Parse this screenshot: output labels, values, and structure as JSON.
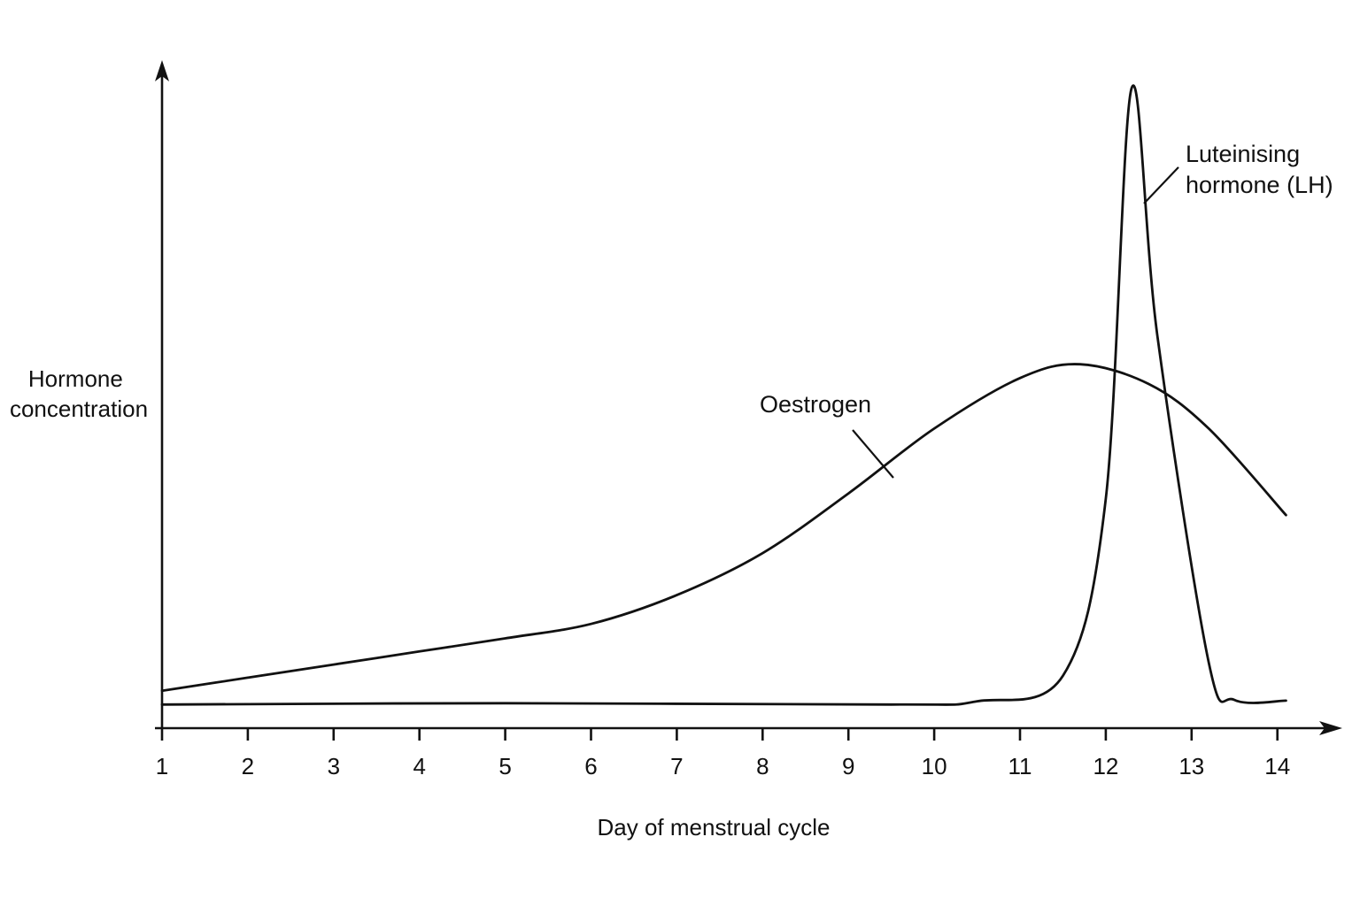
{
  "chart_data": {
    "type": "line",
    "title": "",
    "xlabel": "Day of menstrual cycle",
    "ylabel_lines": [
      "Hormone",
      "concentration"
    ],
    "x_ticks": [
      1,
      2,
      3,
      4,
      5,
      6,
      7,
      8,
      9,
      10,
      11,
      12,
      13,
      14
    ],
    "xlim": [
      1,
      14.7
    ],
    "ylim": [
      0,
      100
    ],
    "y_ticks_shown": false,
    "grid": false,
    "legend": "none",
    "series": [
      {
        "name": "Oestrogen",
        "label_lines": [
          "Oestrogen"
        ],
        "x": [
          1,
          2,
          3,
          4,
          5,
          6,
          7,
          8,
          9,
          10,
          11,
          11.7,
          12.5,
          13.2,
          14.1
        ],
        "y": [
          5.7,
          7.7,
          9.7,
          11.7,
          13.7,
          15.9,
          20.3,
          26.7,
          35.8,
          45.7,
          53.4,
          55.5,
          52.5,
          45.7,
          32.5
        ]
      },
      {
        "name": "Luteinising hormone (LH)",
        "label_lines": [
          "Luteinising",
          "hormone (LH)"
        ],
        "x": [
          1,
          5,
          9.5,
          10.5,
          11.5,
          12.0,
          12.3,
          12.6,
          13.2,
          13.5,
          14.1
        ],
        "y": [
          3.6,
          3.8,
          3.6,
          4.1,
          8.0,
          35.0,
          97.6,
          60.0,
          10.0,
          4.3,
          4.2
        ]
      }
    ]
  }
}
